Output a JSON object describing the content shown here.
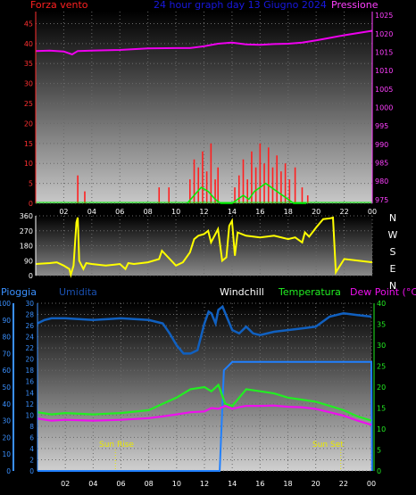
{
  "header": {
    "left_label": "Forza vento",
    "title": "24 hour graph day  13 Giugno 2024",
    "right_label": "Pressione"
  },
  "bottom_header": {
    "pioggia": "Pioggia",
    "umidita": "Umidita",
    "windchill": "Windchill",
    "temperatura": "Temperatura",
    "dewpoint": "Dew Point (°C)"
  },
  "annotations": {
    "sunrise": "Sun Rise",
    "sunset": "Sun Set"
  },
  "colors": {
    "wind": "#ff2020",
    "gust": "#00ee00",
    "pressure": "#ee00ee",
    "direction": "#ffff00",
    "humidity": "#1060c0",
    "rain": "#2080ff",
    "temperature": "#22ee22",
    "dewpoint": "#ee10ee",
    "title": "#1818e0",
    "axis_left": "#ff3030",
    "axis_right": "#ff40ff"
  },
  "chart_data": [
    {
      "type": "area",
      "name": "wind-pressure",
      "x_ticks": [
        "02",
        "04",
        "06",
        "08",
        "10",
        "12",
        "14",
        "16",
        "18",
        "20",
        "22",
        "00"
      ],
      "left_axis": {
        "label": "Forza vento",
        "ticks": [
          0,
          5,
          10,
          15,
          20,
          25,
          30,
          35,
          40,
          45
        ],
        "ylim": [
          0,
          48
        ]
      },
      "right_axis": {
        "label": "Pressione",
        "ticks": [
          975,
          980,
          985,
          990,
          995,
          1000,
          1005,
          1010,
          1015,
          1020,
          1025
        ],
        "ylim": [
          974,
          1026
        ]
      },
      "pressure": {
        "x": [
          0,
          1,
          2,
          2.6,
          3,
          4,
          6,
          8,
          10,
          11,
          12,
          13,
          14,
          15,
          16,
          17,
          18,
          19,
          20,
          21,
          22,
          23,
          24
        ],
        "y": [
          1015.3,
          1015.4,
          1015.2,
          1014.4,
          1015.3,
          1015.4,
          1015.6,
          1016.0,
          1016.1,
          1016.1,
          1016.6,
          1017.3,
          1017.6,
          1017.1,
          1017.0,
          1017.2,
          1017.3,
          1017.6,
          1018.2,
          1018.9,
          1019.6,
          1020.2,
          1020.8
        ]
      },
      "wind": {
        "x": [
          3.0,
          3.5,
          8.8,
          9.5,
          11.0,
          11.3,
          11.6,
          11.9,
          12.2,
          12.5,
          12.8,
          13.0,
          14.2,
          14.5,
          14.8,
          15.1,
          15.4,
          15.7,
          16.0,
          16.3,
          16.6,
          16.9,
          17.2,
          17.5,
          17.8,
          18.1,
          18.5,
          19.0,
          19.4
        ],
        "y": [
          7,
          3,
          4,
          4,
          6,
          11,
          9,
          13,
          8,
          15,
          6,
          9,
          4,
          7,
          11,
          6,
          13,
          9,
          15,
          10,
          14,
          9,
          12,
          8,
          10,
          6,
          9,
          4,
          2
        ]
      },
      "gust": {
        "x": [
          10.8,
          11.3,
          11.8,
          12.3,
          12.8,
          13.2,
          13.6,
          14.0,
          14.4,
          14.8,
          15.2,
          15.6,
          16.0,
          16.4,
          16.8,
          17.2,
          17.6,
          18.0,
          18.4,
          18.8,
          19.3
        ],
        "y": [
          0,
          2,
          4,
          3,
          1,
          0,
          0,
          0,
          1,
          2,
          1,
          3,
          4,
          5,
          4,
          3,
          2,
          1,
          0,
          0,
          0
        ]
      }
    },
    {
      "type": "line",
      "name": "wind-direction",
      "left_ticks": [
        0,
        90,
        180,
        270,
        360
      ],
      "right_labels": [
        "N",
        "W",
        "S",
        "E",
        "N"
      ],
      "ylim": [
        0,
        360
      ],
      "x": [
        0,
        1,
        1.5,
        2,
        2.4,
        2.5,
        2.7,
        2.9,
        3,
        3.1,
        3.4,
        3.6,
        4,
        5,
        6,
        6.4,
        6.6,
        7,
        8,
        8.8,
        9,
        10,
        10.5,
        11,
        11.3,
        11.6,
        12,
        12.3,
        12.5,
        13,
        13.3,
        13.6,
        13.8,
        14,
        14.2,
        14.4,
        15,
        16,
        17,
        18,
        18.5,
        19,
        19.2,
        19.5,
        20,
        20.5,
        21,
        21.2,
        21.4,
        22,
        23,
        24
      ],
      "y": [
        70,
        75,
        80,
        60,
        40,
        5,
        60,
        320,
        350,
        90,
        40,
        75,
        70,
        60,
        70,
        40,
        75,
        70,
        80,
        100,
        150,
        60,
        80,
        140,
        220,
        240,
        250,
        270,
        200,
        280,
        90,
        110,
        300,
        330,
        120,
        260,
        240,
        230,
        240,
        220,
        230,
        200,
        260,
        235,
        290,
        340,
        345,
        350,
        20,
        100,
        90,
        80
      ]
    },
    {
      "type": "line",
      "name": "rain-humidity-temperature",
      "left_axis_pioggia": {
        "label": "Pioggia",
        "ticks": [
          0,
          10,
          20,
          30,
          40,
          50,
          60,
          70,
          80,
          90,
          100
        ],
        "ylim": [
          0,
          100
        ]
      },
      "left_axis_umidita": {
        "label": "Umidita",
        "ticks": [
          0,
          2,
          4,
          6,
          8,
          10,
          12,
          14,
          16,
          18,
          20,
          22,
          24,
          26,
          28,
          30
        ],
        "ylim": [
          0,
          30
        ]
      },
      "right_axis": {
        "label": "Dew Point (°C)",
        "ticks": [
          0,
          5,
          10,
          15,
          20,
          25,
          30,
          35,
          40
        ],
        "ylim": [
          0,
          40
        ]
      },
      "x_ticks": [
        "02",
        "04",
        "06",
        "08",
        "10",
        "12",
        "14",
        "16",
        "18",
        "20",
        "22",
        "00"
      ],
      "humidity": {
        "x": [
          0,
          0.5,
          1,
          2,
          4,
          6,
          8,
          9,
          9.5,
          10,
          10.5,
          11,
          11.5,
          12,
          12.3,
          12.5,
          12.8,
          13,
          13.3,
          13.6,
          14,
          14.5,
          15,
          15.5,
          16,
          17,
          18,
          19,
          20,
          21,
          22,
          23,
          24
        ],
        "y": [
          88,
          90,
          91,
          91,
          90,
          91,
          90,
          88,
          82,
          75,
          70,
          70,
          72,
          88,
          95,
          94,
          88,
          96,
          98,
          92,
          84,
          82,
          86,
          82,
          81,
          83,
          84,
          85,
          86,
          92,
          94,
          93,
          92
        ]
      },
      "temperature": {
        "x": [
          0,
          1,
          2,
          4,
          6,
          8,
          9,
          10,
          11,
          12,
          12.5,
          13,
          13.5,
          14,
          14.5,
          15,
          16,
          17,
          18,
          19,
          20,
          21,
          22,
          23,
          24
        ],
        "y": [
          14,
          13.5,
          13.8,
          13.5,
          13.8,
          14.5,
          16,
          17.5,
          19.5,
          20,
          19,
          20.5,
          16,
          15.5,
          17.5,
          19.5,
          19,
          18.5,
          17.5,
          17,
          16.5,
          15.5,
          14.5,
          13,
          12
        ]
      },
      "dewpoint": {
        "x": [
          0,
          1,
          2,
          4,
          6,
          8,
          9,
          10,
          11,
          12,
          12.5,
          13,
          13.5,
          14,
          14.5,
          15,
          16,
          17,
          18,
          19,
          20,
          21,
          22,
          23,
          24
        ],
        "y": [
          12.5,
          12,
          12.2,
          12,
          12.2,
          12.6,
          13,
          13.5,
          14,
          14.2,
          15,
          14.8,
          15.5,
          14.8,
          15.2,
          15.5,
          15.5,
          15.6,
          15.3,
          15.2,
          14.8,
          14,
          13.2,
          12,
          11
        ]
      },
      "rain": {
        "x": [
          0,
          12.5,
          12.6,
          13.1,
          13.4,
          14.0,
          22.0,
          24.0,
          24.05
        ],
        "y": [
          0,
          0,
          0,
          0,
          18,
          19.5,
          19.5,
          19.5,
          0
        ]
      },
      "sunrise_hour": 5.6,
      "sunset_hour": 21.8
    }
  ]
}
